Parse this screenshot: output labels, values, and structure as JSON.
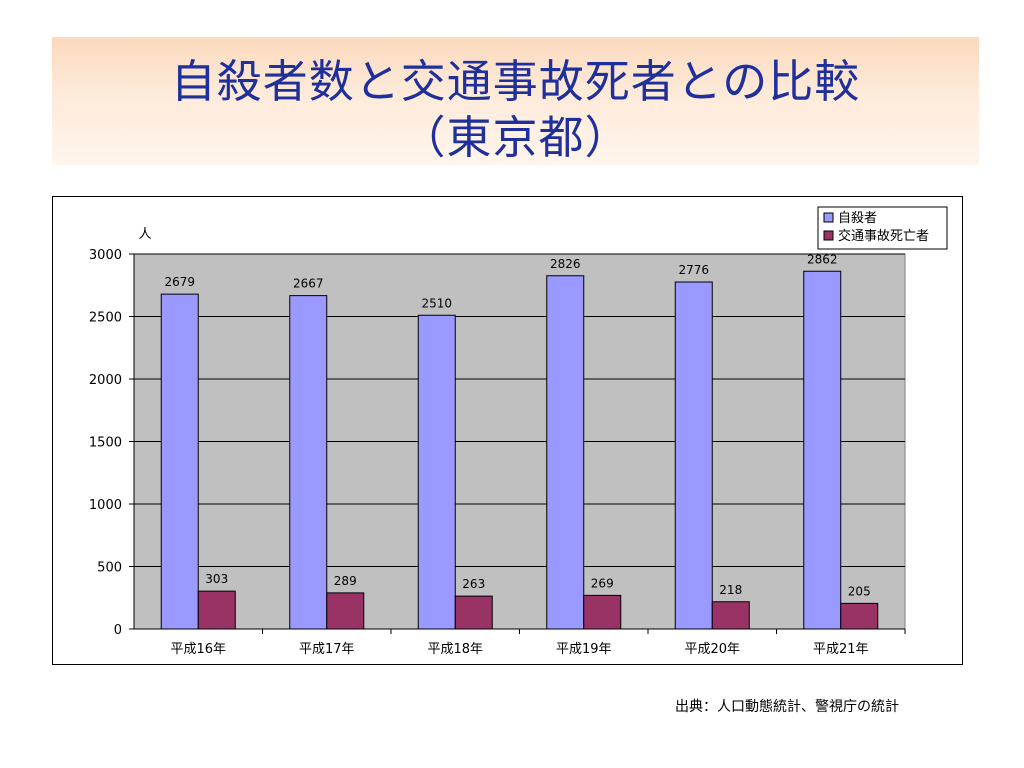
{
  "title": {
    "line1": "自殺者数と交通事故死者との比較",
    "line2": "（東京都）"
  },
  "source": "出典：人口動態統計、警視庁の統計",
  "chart_data": {
    "type": "bar",
    "ylabel": "人",
    "categories": [
      "平成16年",
      "平成17年",
      "平成18年",
      "平成19年",
      "平成20年",
      "平成21年"
    ],
    "series": [
      {
        "name": "自殺者",
        "color": "#9999ff",
        "values": [
          2679,
          2667,
          2510,
          2826,
          2776,
          2862
        ]
      },
      {
        "name": "交通事故死亡者",
        "color": "#993366",
        "values": [
          303,
          289,
          263,
          269,
          218,
          205
        ]
      }
    ],
    "ylim": [
      0,
      3000
    ],
    "yticks": [
      0,
      500,
      1000,
      1500,
      2000,
      2500,
      3000
    ],
    "grid": true,
    "legend": "top-right",
    "data_labels": true
  }
}
